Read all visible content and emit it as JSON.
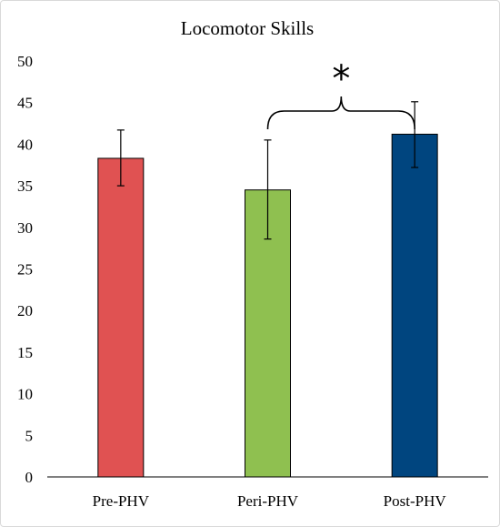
{
  "chart_data": {
    "type": "bar",
    "title": "Locomotor Skills",
    "categories": [
      "Pre-PHV",
      "Peri-PHV",
      "Post-PHV"
    ],
    "values": [
      38.3,
      34.5,
      41.2
    ],
    "error_upper": [
      41.7,
      40.5,
      45.1
    ],
    "error_lower": [
      35.0,
      28.6,
      37.2
    ],
    "ylim": [
      0,
      50
    ],
    "yticks": [
      0,
      5,
      10,
      15,
      20,
      25,
      30,
      35,
      40,
      45,
      50
    ],
    "colors": [
      "#e05252",
      "#8fc050",
      "#00457f"
    ],
    "grid": false,
    "annotations": [
      {
        "text": "*",
        "from": "Peri-PHV",
        "to": "Post-PHV",
        "type": "brace"
      }
    ]
  }
}
